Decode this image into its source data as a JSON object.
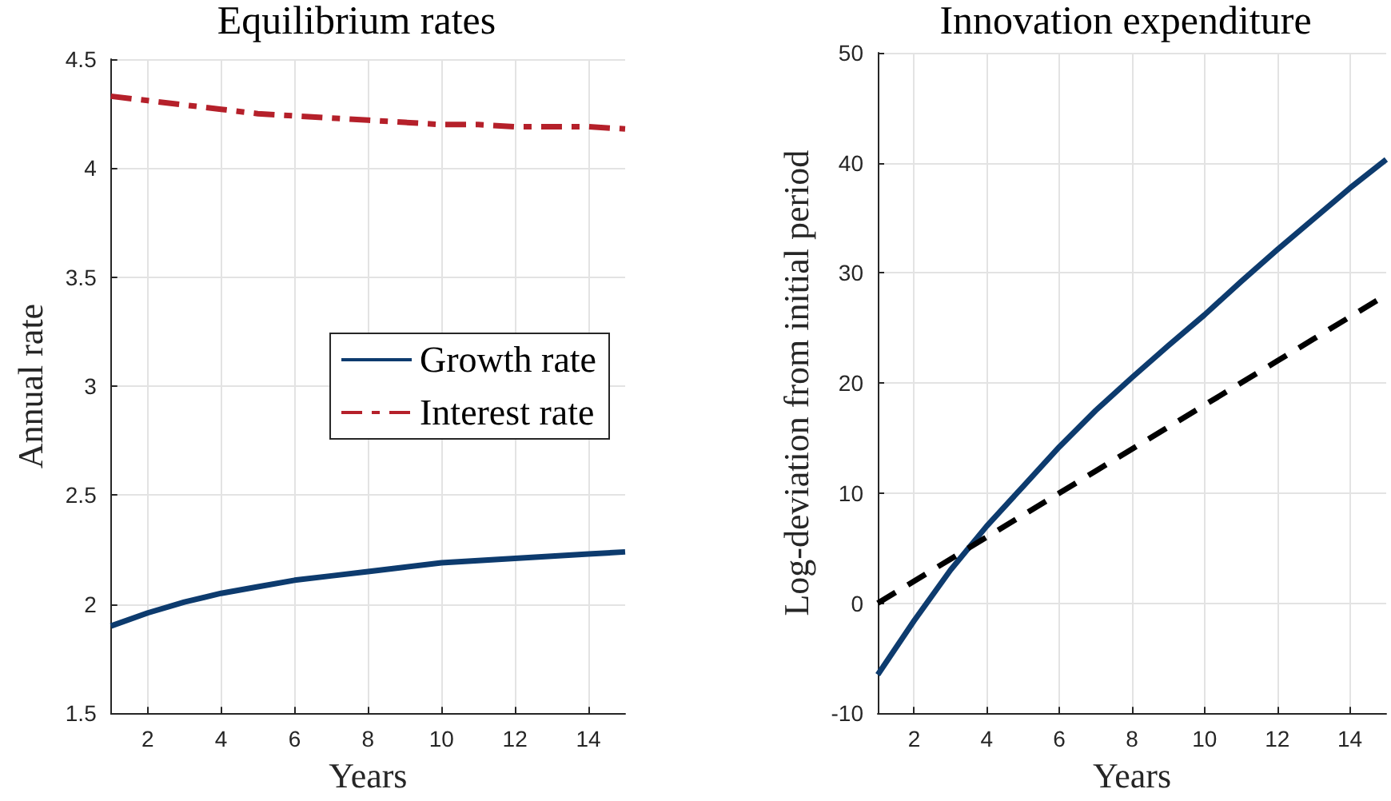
{
  "chart_data": [
    {
      "type": "line",
      "title": "Equilibrium rates",
      "xlabel": "Years",
      "ylabel": "Annual rate",
      "x": [
        1,
        2,
        3,
        4,
        5,
        6,
        7,
        8,
        9,
        10,
        11,
        12,
        13,
        14,
        15
      ],
      "series": [
        {
          "name": "Growth rate",
          "color": "#0d3b6e",
          "line_style": "solid",
          "values": [
            1.9,
            1.96,
            2.01,
            2.05,
            2.08,
            2.11,
            2.13,
            2.15,
            2.17,
            2.19,
            2.2,
            2.21,
            2.22,
            2.23,
            2.24
          ]
        },
        {
          "name": "Interest rate",
          "color": "#b5202a",
          "line_style": "dashdot",
          "values": [
            4.33,
            4.31,
            4.29,
            4.27,
            4.25,
            4.24,
            4.23,
            4.22,
            4.21,
            4.2,
            4.2,
            4.19,
            4.19,
            4.19,
            4.18
          ]
        }
      ],
      "xlim": [
        1,
        15
      ],
      "xticks": [
        2,
        4,
        6,
        8,
        10,
        12,
        14
      ],
      "ylim": [
        1.5,
        4.5
      ],
      "yticks": [
        1.5,
        2,
        2.5,
        3,
        3.5,
        4,
        4.5
      ],
      "grid": true,
      "legend": "right"
    },
    {
      "type": "line",
      "title": "Innovation expenditure",
      "xlabel": "Years",
      "ylabel": "Log-deviation from initial period",
      "x": [
        1,
        2,
        3,
        4,
        5,
        6,
        7,
        8,
        9,
        10,
        11,
        12,
        13,
        14,
        15
      ],
      "series": [
        {
          "color": "#0d3b6e",
          "line_style": "solid",
          "values": [
            -6.5,
            -1.6,
            3.0,
            7.0,
            10.6,
            14.2,
            17.5,
            20.5,
            23.4,
            26.2,
            29.2,
            32.1,
            34.9,
            37.7,
            40.3
          ]
        },
        {
          "color": "#000000",
          "line_style": "dashed",
          "values": [
            0,
            2,
            4,
            6,
            8,
            10,
            12,
            14,
            16,
            18,
            20,
            22,
            24,
            26,
            28
          ]
        }
      ],
      "xlim": [
        1,
        15
      ],
      "xticks": [
        2,
        4,
        6,
        8,
        10,
        12,
        14
      ],
      "ylim": [
        -10,
        50
      ],
      "yticks": [
        -10,
        0,
        10,
        20,
        30,
        40,
        50
      ],
      "grid": true
    }
  ]
}
